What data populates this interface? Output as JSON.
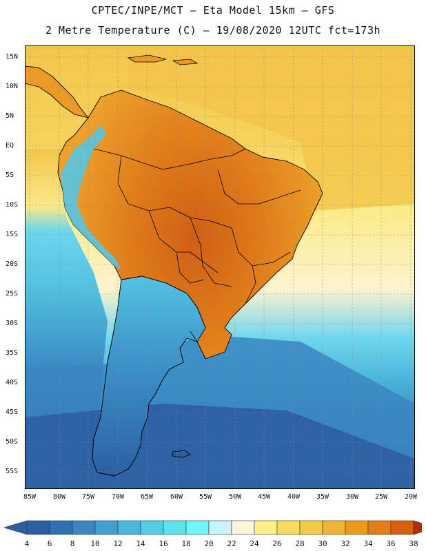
{
  "title_line1": "CPTEC/INPE/MCT –  Eta Model 15km – GFS",
  "title_line2": "2 Metre Temperature (C) – 19/08/2020 12UTC fct=173h",
  "lat_labels": [
    "15N",
    "10N",
    "5N",
    "EQ",
    "5S",
    "10S",
    "15S",
    "20S",
    "25S",
    "30S",
    "35S",
    "40S",
    "45S",
    "50S",
    "55S"
  ],
  "lon_labels": [
    "85W",
    "80W",
    "75W",
    "70W",
    "65W",
    "60W",
    "55W",
    "50W",
    "45W",
    "40W",
    "35W",
    "30W",
    "25W",
    "20W"
  ],
  "colorbar": {
    "labels": [
      "4",
      "6",
      "8",
      "10",
      "12",
      "14",
      "16",
      "18",
      "20",
      "22",
      "24",
      "26",
      "28",
      "30",
      "32",
      "34",
      "36",
      "38"
    ],
    "colors": [
      "#2c5ea4",
      "#2f70b4",
      "#3a86c2",
      "#41a0d2",
      "#4ab8de",
      "#53cce6",
      "#5fe2f0",
      "#6ef6fb",
      "#c9f4fb",
      "#fdf5dc",
      "#fbf08a",
      "#f8dd5c",
      "#f3c94a",
      "#eeb337",
      "#eb9a1a",
      "#e47d16",
      "#d7600e",
      "#c2400a",
      "#b02d08"
    ],
    "low_arrow_color": "#2c5ea4",
    "high_arrow_color": "#b02d08"
  },
  "map_colors": {
    "ocean_cold": "#2f5d9f",
    "ocean_cool": "#3ea0cf",
    "ocean_mild": "#52c9e3",
    "ocean_warm": "#fbe98a",
    "ocean_pale": "#fdf5dc",
    "ocean_north": "#f4c94c",
    "land_hot": "#d8701c",
    "land_warm": "#eb9a1a",
    "coast": "#000000",
    "grid": "#888888"
  }
}
